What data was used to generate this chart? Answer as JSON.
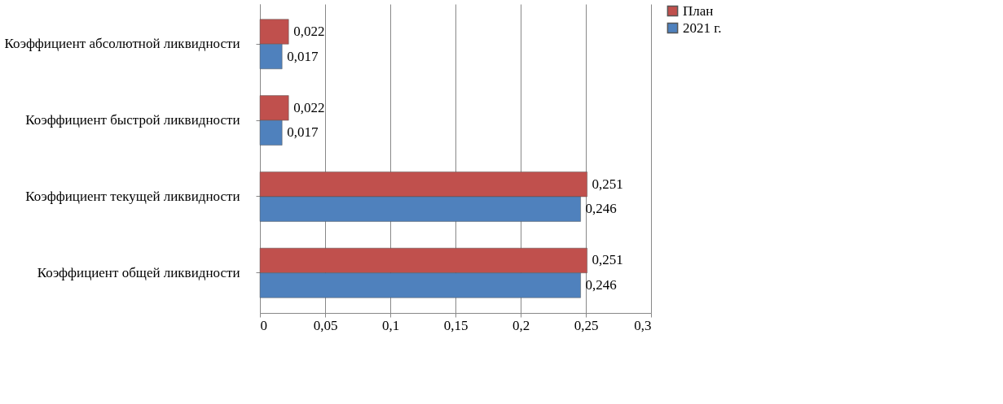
{
  "chart_data": {
    "type": "bar",
    "orientation": "horizontal",
    "categories": [
      "Коэффициент абсолютной ликвидности",
      "Коэффициент быстрой ликвидности",
      "Коэффициент текущей ликвидности",
      "Коэффициент общей ликвидности"
    ],
    "series": [
      {
        "name": "План",
        "color": "#c0504d",
        "values": [
          0.022,
          0.022,
          0.251,
          0.251
        ],
        "value_labels": [
          "0,022",
          "0,022",
          "0,251",
          "0,251"
        ]
      },
      {
        "name": "2021 г.",
        "color": "#4f81bd",
        "values": [
          0.017,
          0.017,
          0.246,
          0.246
        ],
        "value_labels": [
          "0,017",
          "0,017",
          "0,246",
          "0,246"
        ]
      }
    ],
    "xlim": [
      0,
      0.3
    ],
    "xticks": [
      0,
      {
        "value": 0.05,
        "label": "0,05"
      },
      {
        "value": 0.1,
        "label": "0,1"
      },
      {
        "value": 0.15,
        "label": "0,15"
      },
      {
        "value": 0.2,
        "label": "0,2"
      },
      {
        "value": 0.25,
        "label": "0,25"
      },
      {
        "value": 0.3,
        "label": "0,3"
      }
    ],
    "grid": "x",
    "legend": "right"
  }
}
